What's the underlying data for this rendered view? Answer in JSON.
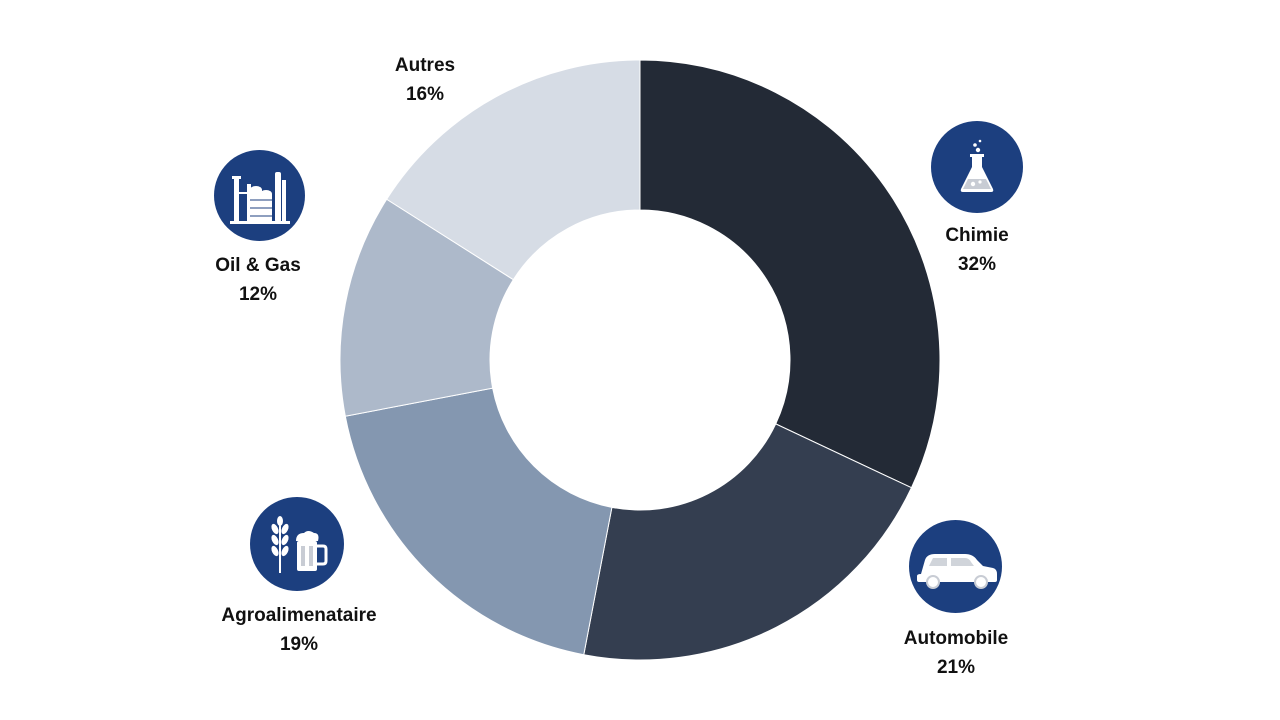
{
  "chart_data": {
    "type": "pie",
    "style": "donut",
    "categories": [
      "Chimie",
      "Automobile",
      "Agroalimenataire",
      "Oil & Gas",
      "Autres"
    ],
    "values": [
      32,
      21,
      19,
      12,
      16
    ],
    "value_labels": [
      "32%",
      "21%",
      "19%",
      "12%",
      "16%"
    ],
    "colors": [
      "#232a36",
      "#343e50",
      "#8497b0",
      "#adb9ca",
      "#d6dce5"
    ],
    "title": "",
    "legend": "none",
    "icons": [
      "flask-icon",
      "car-icon",
      "wheat-beer-icon",
      "refinery-icon",
      null
    ],
    "icon_color": "#1c3f7f"
  }
}
